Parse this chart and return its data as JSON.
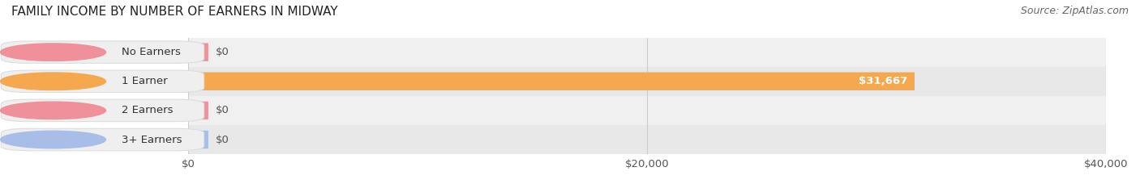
{
  "title": "FAMILY INCOME BY NUMBER OF EARNERS IN MIDWAY",
  "source": "Source: ZipAtlas.com",
  "categories": [
    "No Earners",
    "1 Earner",
    "2 Earners",
    "3+ Earners"
  ],
  "values": [
    0,
    31667,
    0,
    0
  ],
  "max_value": 40000,
  "bar_colors": [
    "#f0909a",
    "#f5a84e",
    "#f0909a",
    "#a8bee8"
  ],
  "label_badge_colors": [
    "#f0909a",
    "#f5a84e",
    "#f0909a",
    "#a8bee8"
  ],
  "bar_labels": [
    "$0",
    "$31,667",
    "$0",
    "$0"
  ],
  "xtick_labels": [
    "$0",
    "$20,000",
    "$40,000"
  ],
  "xtick_values": [
    0,
    20000,
    40000
  ],
  "title_fontsize": 11,
  "source_fontsize": 9,
  "label_fontsize": 9.5,
  "bar_height": 0.62,
  "row_colors": [
    "#f0f0f0",
    "#e8e8e8",
    "#f0f0f0",
    "#e8e8e8"
  ]
}
